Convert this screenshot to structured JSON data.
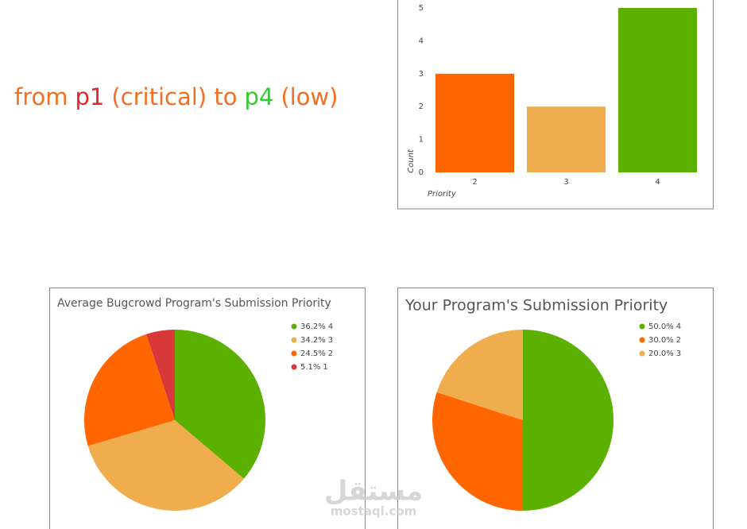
{
  "headline": [
    {
      "text": "from",
      "color": "#f36f21"
    },
    {
      "text": "p1",
      "color": "#e3262e"
    },
    {
      "text": "(critical) to",
      "color": "#f36f21"
    },
    {
      "text": "p4",
      "color": "#2ecc2e"
    },
    {
      "text": "(low)",
      "color": "#f36f21"
    }
  ],
  "chart_data": [
    {
      "type": "bar",
      "categories": [
        "2",
        "3",
        "4"
      ],
      "values": [
        3,
        2,
        5
      ],
      "colors": [
        "#ff6600",
        "#f0ad4e",
        "#5cb000"
      ],
      "ylim": [
        0,
        5
      ],
      "yticks": [
        0,
        1,
        2,
        3,
        4,
        5
      ],
      "x_label": "Priority",
      "y_label": "Count",
      "grid": false
    },
    {
      "type": "pie",
      "title": "Average Bugcrowd Program's Submission Priority",
      "categories": [
        "4",
        "3",
        "2",
        "1"
      ],
      "values": [
        36.2,
        34.2,
        24.5,
        5.1
      ],
      "value_labels": [
        "36.2%",
        "34.2%",
        "24.5%",
        "5.1%"
      ],
      "colors": [
        "#5cb000",
        "#f0ad4e",
        "#ff6600",
        "#d9383a"
      ]
    },
    {
      "type": "pie",
      "title": "Your Program's Submission Priority",
      "categories": [
        "4",
        "2",
        "3"
      ],
      "values": [
        50.0,
        30.0,
        20.0
      ],
      "value_labels": [
        "50.0%",
        "30.0%",
        "20.0%"
      ],
      "colors": [
        "#5cb000",
        "#ff6600",
        "#f0ad4e"
      ]
    }
  ],
  "watermark": {
    "arabic": "مستقل",
    "site": "mostaql.com"
  }
}
